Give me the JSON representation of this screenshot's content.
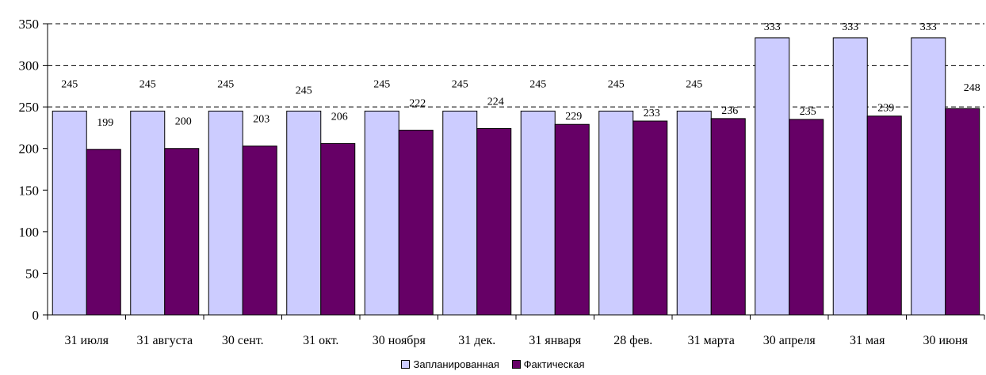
{
  "chart_data": {
    "type": "bar",
    "title": "",
    "xlabel": "",
    "ylabel": "",
    "ylim": [
      0,
      350
    ],
    "yticks": [
      0,
      50,
      100,
      150,
      200,
      250,
      300,
      350
    ],
    "grid": "horizontal dashed at 250, 300, 350",
    "legend_position": "bottom",
    "categories": [
      "31 июля",
      "31 августа",
      "30 сент.",
      "31 окт.",
      "30 ноября",
      "31 дек.",
      "31 января",
      "28 фев.",
      "31 марта",
      "30 апреля",
      "31  мая",
      "30 июня"
    ],
    "series": [
      {
        "name": "Запланированная",
        "color": "#ccccff",
        "values": [
          245,
          245,
          245,
          245,
          245,
          245,
          245,
          245,
          245,
          333,
          333,
          333
        ]
      },
      {
        "name": "Фактическая",
        "color": "#660066",
        "values": [
          199,
          200,
          203,
          206,
          222,
          224,
          229,
          233,
          236,
          235,
          239,
          248
        ]
      }
    ]
  }
}
